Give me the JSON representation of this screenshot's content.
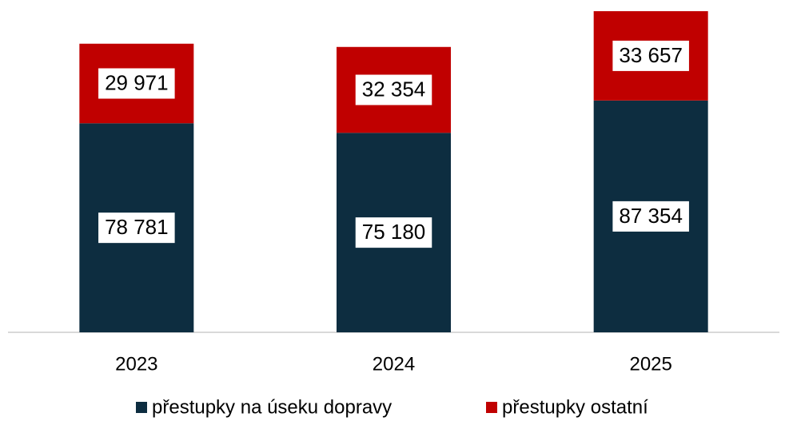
{
  "chart_data": {
    "type": "stacked_bar",
    "categories": [
      "2023",
      "2024",
      "2025"
    ],
    "series": [
      {
        "name": "přestupky na úseku dopravy",
        "color": "#0d2d40",
        "values": [
          78781,
          75180,
          87354
        ],
        "value_labels": [
          "78 781",
          "75 180",
          "87 354"
        ]
      },
      {
        "name": "přestupky ostatní",
        "color": "#c00000",
        "values": [
          29971,
          32354,
          33657
        ],
        "value_labels": [
          "29 971",
          "32 354",
          "33 657"
        ]
      }
    ],
    "legend": "bottom"
  }
}
